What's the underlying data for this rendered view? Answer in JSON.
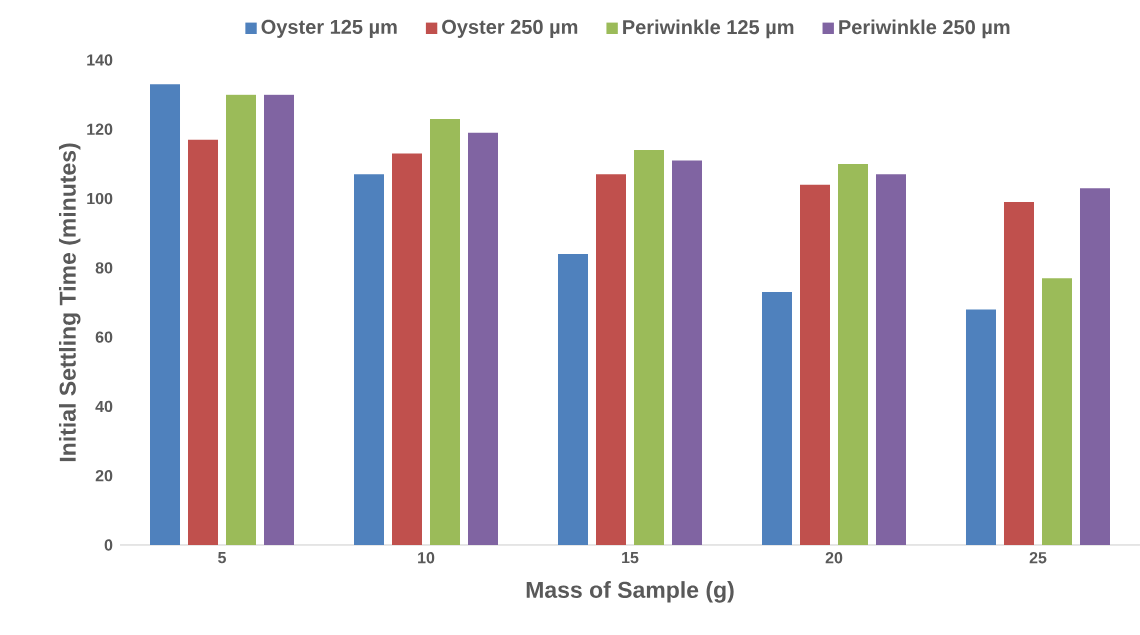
{
  "chart_data": {
    "type": "bar",
    "xlabel": "Mass of Sample (g)",
    "ylabel": "Initial Settling Time (minutes)",
    "categories": [
      "5",
      "10",
      "15",
      "20",
      "25"
    ],
    "series": [
      {
        "name": "Oyster 125 µm",
        "color": "#4f81bd",
        "values": [
          133,
          107,
          84,
          73,
          68
        ]
      },
      {
        "name": "Oyster 250 µm",
        "color": "#c0504d",
        "values": [
          117,
          113,
          107,
          104,
          99
        ]
      },
      {
        "name": "Periwinkle 125 µm",
        "color": "#9bbb59",
        "values": [
          130,
          123,
          114,
          110,
          77
        ]
      },
      {
        "name": "Periwinkle 250 µm",
        "color": "#8064a2",
        "values": [
          130,
          119,
          111,
          107,
          103
        ]
      }
    ],
    "ylim": [
      0,
      140
    ],
    "yticks": [
      0,
      20,
      40,
      60,
      80,
      100,
      120,
      140
    ],
    "legend": "top"
  }
}
